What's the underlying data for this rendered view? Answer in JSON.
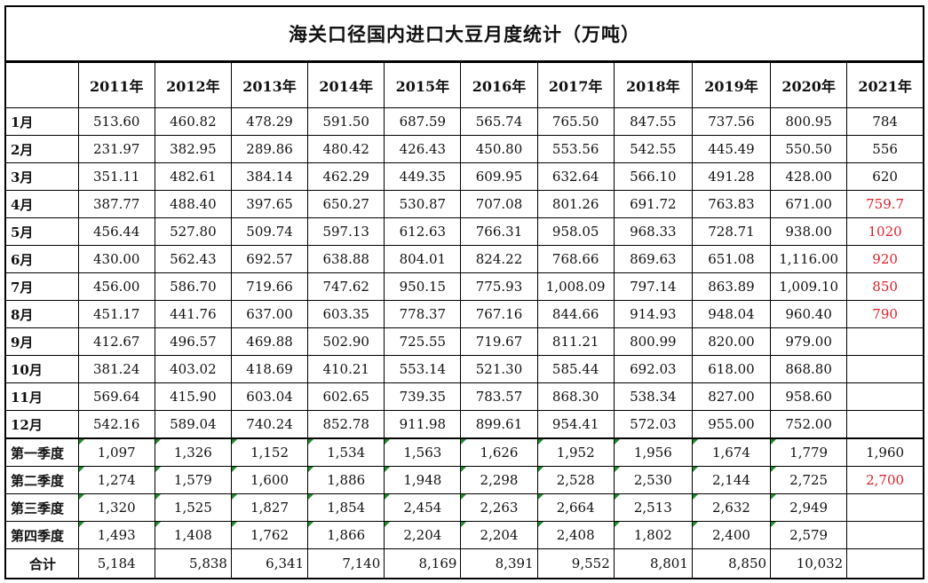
{
  "title": "海关口径国内进口大豆月度统计（万吨）",
  "columns": [
    "",
    "2011年",
    "2012年",
    "2013年",
    "2014年",
    "2015年",
    "2016年",
    "2017年",
    "2018年",
    "2019年",
    "2020年",
    "2021年"
  ],
  "rows": [
    {
      "label": "1月",
      "values": [
        "513.60",
        "460.82",
        "478.29",
        "591.50",
        "687.59",
        "565.74",
        "765.50",
        "847.55",
        "737.56",
        "800.95",
        "784"
      ]
    },
    {
      "label": "2月",
      "values": [
        "231.97",
        "382.95",
        "289.86",
        "480.42",
        "426.43",
        "450.80",
        "553.56",
        "542.55",
        "445.49",
        "550.50",
        "556"
      ]
    },
    {
      "label": "3月",
      "values": [
        "351.11",
        "482.61",
        "384.14",
        "462.29",
        "449.35",
        "609.95",
        "632.64",
        "566.10",
        "491.28",
        "428.00",
        "620"
      ]
    },
    {
      "label": "4月",
      "values": [
        "387.77",
        "488.40",
        "397.65",
        "650.27",
        "530.87",
        "707.08",
        "801.26",
        "691.72",
        "763.83",
        "671.00",
        "759.7"
      ]
    },
    {
      "label": "5月",
      "values": [
        "456.44",
        "527.80",
        "509.74",
        "597.13",
        "612.63",
        "766.31",
        "958.05",
        "968.33",
        "728.71",
        "938.00",
        "1020"
      ]
    },
    {
      "label": "6月",
      "values": [
        "430.00",
        "562.43",
        "692.57",
        "638.88",
        "804.01",
        "824.22",
        "768.66",
        "869.63",
        "651.08",
        "1,116.00",
        "920"
      ]
    },
    {
      "label": "7月",
      "values": [
        "456.00",
        "586.70",
        "719.66",
        "747.62",
        "950.15",
        "775.93",
        "1,008.09",
        "797.14",
        "863.89",
        "1,009.10",
        "850"
      ]
    },
    {
      "label": "8月",
      "values": [
        "451.17",
        "441.76",
        "637.00",
        "603.35",
        "778.37",
        "767.16",
        "844.66",
        "914.93",
        "948.04",
        "960.40",
        "790"
      ]
    },
    {
      "label": "9月",
      "values": [
        "412.67",
        "496.57",
        "469.88",
        "502.90",
        "725.55",
        "719.67",
        "811.21",
        "800.99",
        "820.00",
        "979.00",
        ""
      ]
    },
    {
      "label": "10月",
      "values": [
        "381.24",
        "403.02",
        "418.69",
        "410.21",
        "553.14",
        "521.30",
        "585.44",
        "692.03",
        "618.00",
        "868.80",
        ""
      ]
    },
    {
      "label": "11月",
      "values": [
        "569.64",
        "415.90",
        "603.04",
        "602.65",
        "739.35",
        "783.57",
        "868.30",
        "538.34",
        "827.00",
        "958.60",
        ""
      ]
    },
    {
      "label": "12月",
      "values": [
        "542.16",
        "589.04",
        "740.24",
        "852.78",
        "911.98",
        "899.61",
        "954.41",
        "572.03",
        "955.00",
        "752.00",
        ""
      ]
    }
  ],
  "quarters": [
    {
      "label": "第一季度",
      "values": [
        "1,097",
        "1,326",
        "1,152",
        "1,534",
        "1,563",
        "1,626",
        "1,952",
        "1,956",
        "1,674",
        "1,779",
        "1,960"
      ]
    },
    {
      "label": "第二季度",
      "values": [
        "1,274",
        "1,579",
        "1,600",
        "1,886",
        "1,948",
        "2,298",
        "2,528",
        "2,530",
        "2,144",
        "2,725",
        "2,700"
      ]
    },
    {
      "label": "第三季度",
      "values": [
        "1,320",
        "1,525",
        "1,827",
        "1,854",
        "2,454",
        "2,263",
        "2,664",
        "2,513",
        "2,632",
        "2,949",
        ""
      ]
    },
    {
      "label": "第四季度",
      "values": [
        "1,493",
        "1,408",
        "1,762",
        "1,866",
        "2,204",
        "2,204",
        "2,408",
        "1,802",
        "2,400",
        "2,579",
        ""
      ]
    }
  ],
  "total": {
    "label": "合计",
    "values": [
      "5,184",
      "5,838",
      "6,341",
      "7,140",
      "8,169",
      "8,391",
      "9,552",
      "8,801",
      "8,850",
      "10,032",
      ""
    ]
  },
  "colors": {
    "highlight": "#e0202a",
    "cell_marker": "#1e8c2e",
    "grid": "#000000"
  }
}
